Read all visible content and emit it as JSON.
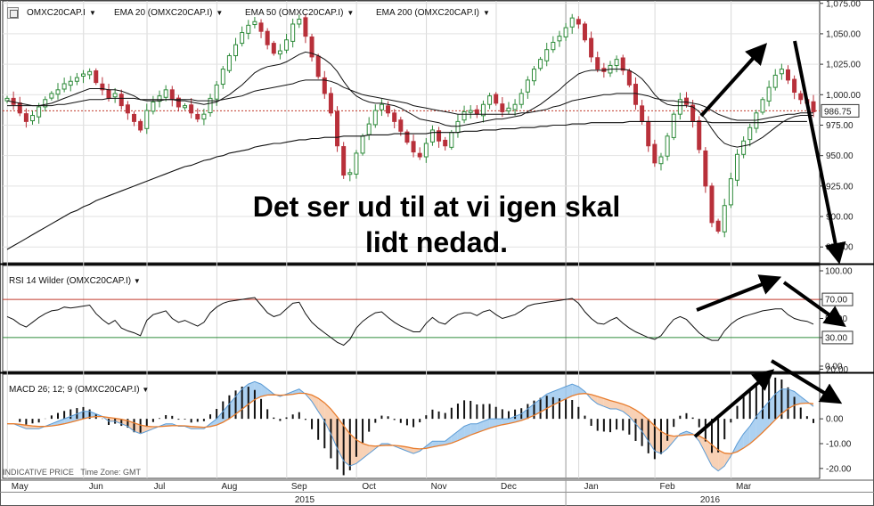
{
  "header": {
    "symbol": "OMXC20CAP.I",
    "ema20": "EMA 20 (OMXC20CAP.I)",
    "ema50": "EMA 50 (OMXC20CAP.I)",
    "ema200": "EMA 200 (OMXC20CAP.I)"
  },
  "rsi_title": "RSI 14 Wilder (OMXC20CAP.I)",
  "macd_title": "MACD 26; 12; 9 (OMXC20CAP.I)",
  "annotation": {
    "line1": "Det ser ud til at vi igen skal",
    "line2": "lidt nedad."
  },
  "footer": {
    "price_type": "INDICATIVE PRICE",
    "timezone": "Time Zone: GMT"
  },
  "colors": {
    "up": "#2e8b3a",
    "down": "#b8303a",
    "rsi_high": "#c0392b",
    "rsi_low": "#2e8b3a",
    "macd_fill_blue": "#9fc9ee",
    "macd_fill_orange": "#f7c9a8",
    "signal": "#e87d2e",
    "macd": "#5b9bd5"
  },
  "chart_data": {
    "type": "line",
    "price": {
      "y_ticks": [
        1075,
        1050,
        1025,
        1000,
        975,
        950,
        925,
        900,
        875
      ],
      "y_tick_labels": [
        "1,075.00",
        "1,050.00",
        "1,025.00",
        "1,000.00",
        "975.00",
        "950.00",
        "925.00",
        "900.00",
        "875.00"
      ],
      "ylim": [
        862,
        1077
      ],
      "last_value": 986.75,
      "last_label": "986.75",
      "close": [
        997,
        992,
        985,
        978,
        983,
        990,
        996,
        1001,
        1004,
        1009,
        1011,
        1014,
        1017,
        1019,
        1010,
        1004,
        997,
        1001,
        991,
        985,
        978,
        971,
        987,
        994,
        999,
        1004,
        996,
        990,
        991,
        985,
        980,
        984,
        997,
        1008,
        1021,
        1032,
        1041,
        1051,
        1057,
        1060,
        1052,
        1041,
        1034,
        1036,
        1045,
        1058,
        1062,
        1048,
        1031,
        1015,
        1001,
        985,
        958,
        934,
        936,
        952,
        966,
        976,
        987,
        992,
        985,
        978,
        970,
        961,
        953,
        949,
        960,
        971,
        962,
        958,
        969,
        978,
        986,
        987,
        984,
        992,
        999,
        993,
        986,
        989,
        992,
        1001,
        1012,
        1021,
        1029,
        1037,
        1043,
        1048,
        1055,
        1063,
        1058,
        1045,
        1031,
        1021,
        1019,
        1024,
        1029,
        1020,
        1008,
        992,
        978,
        958,
        944,
        949,
        966,
        984,
        996,
        992,
        978,
        955,
        925,
        895,
        888,
        909,
        931,
        951,
        962,
        973,
        985,
        996,
        1006,
        1016,
        1021,
        1012,
        1002,
        996,
        993,
        986
      ]
    },
    "ema20": [
      995,
      994,
      993,
      992,
      991,
      991,
      992,
      993,
      995,
      997,
      999,
      1001,
      1003,
      1005,
      1005,
      1005,
      1004,
      1004,
      1003,
      1001,
      999,
      996,
      995,
      995,
      995,
      996,
      996,
      995,
      995,
      994,
      993,
      992,
      993,
      994,
      997,
      1000,
      1004,
      1008,
      1013,
      1018,
      1021,
      1023,
      1024,
      1025,
      1027,
      1030,
      1033,
      1035,
      1034,
      1032,
      1029,
      1025,
      1019,
      1011,
      1004,
      999,
      996,
      994,
      993,
      993,
      992,
      991,
      989,
      986,
      983,
      980,
      979,
      978,
      977,
      975,
      974,
      974,
      975,
      976,
      977,
      978,
      979,
      980,
      980,
      981,
      982,
      983,
      986,
      989,
      992,
      996,
      1000,
      1004,
      1009,
      1013,
      1017,
      1019,
      1020,
      1020,
      1020,
      1021,
      1021,
      1021,
      1020,
      1017,
      1013,
      1007,
      1000,
      995,
      992,
      991,
      991,
      991,
      990,
      986,
      980,
      972,
      965,
      960,
      958,
      957,
      958,
      959,
      962,
      965,
      969,
      973,
      977,
      980,
      982,
      983,
      983,
      983
    ],
    "ema50": [
      991,
      991,
      991,
      991,
      991,
      991,
      991,
      991,
      992,
      992,
      993,
      994,
      995,
      996,
      996,
      996,
      997,
      997,
      997,
      997,
      997,
      996,
      996,
      996,
      996,
      996,
      996,
      996,
      996,
      996,
      995,
      995,
      995,
      995,
      996,
      997,
      998,
      999,
      1001,
      1003,
      1004,
      1005,
      1006,
      1007,
      1008,
      1009,
      1011,
      1012,
      1012,
      1012,
      1012,
      1011,
      1009,
      1006,
      1004,
      1002,
      1000,
      999,
      998,
      997,
      996,
      995,
      994,
      993,
      991,
      990,
      989,
      988,
      987,
      986,
      985,
      984,
      984,
      984,
      984,
      984,
      984,
      984,
      984,
      984,
      984,
      985,
      985,
      986,
      987,
      988,
      990,
      991,
      993,
      995,
      996,
      997,
      998,
      999,
      1000,
      1000,
      1001,
      1001,
      1001,
      1001,
      1000,
      999,
      997,
      996,
      995,
      995,
      994,
      994,
      993,
      992,
      990,
      987,
      984,
      982,
      980,
      979,
      979,
      979,
      979,
      980,
      981,
      982,
      983,
      984,
      984,
      985,
      985,
      985
    ],
    "ema200": [
      873,
      876,
      879,
      882,
      885,
      888,
      891,
      894,
      897,
      900,
      903,
      905,
      908,
      910,
      913,
      915,
      917,
      919,
      921,
      923,
      925,
      927,
      929,
      931,
      933,
      935,
      937,
      939,
      941,
      942,
      944,
      946,
      947,
      949,
      950,
      952,
      953,
      954,
      955,
      957,
      958,
      959,
      960,
      960,
      961,
      962,
      963,
      963,
      964,
      964,
      965,
      965,
      965,
      966,
      966,
      966,
      966,
      967,
      967,
      967,
      967,
      968,
      968,
      968,
      968,
      968,
      968,
      969,
      969,
      969,
      969,
      969,
      970,
      970,
      970,
      971,
      971,
      971,
      972,
      972,
      972,
      973,
      973,
      973,
      974,
      974,
      975,
      975,
      975,
      976,
      976,
      976,
      977,
      977,
      977,
      977,
      977,
      977,
      978,
      978,
      978,
      978,
      978,
      978,
      978,
      978,
      978,
      978,
      978,
      978,
      978,
      977,
      977,
      977,
      977,
      977,
      977,
      977,
      977,
      977,
      978,
      978,
      978,
      978,
      978,
      978,
      978
    ],
    "rsi": {
      "y_ticks": [
        100,
        70,
        50,
        30,
        0
      ],
      "y_tick_labels": [
        "100.00",
        "70.00",
        "50.00",
        "30.00",
        "0.00"
      ],
      "ylim": [
        0,
        100
      ],
      "overbought": 70,
      "oversold": 30,
      "values": [
        52,
        49,
        44,
        41,
        46,
        51,
        55,
        58,
        59,
        62,
        61,
        62,
        63,
        64,
        55,
        49,
        44,
        48,
        40,
        37,
        35,
        32,
        48,
        54,
        56,
        58,
        50,
        46,
        48,
        45,
        42,
        46,
        56,
        62,
        66,
        68,
        69,
        70,
        71,
        72,
        64,
        56,
        52,
        54,
        60,
        66,
        67,
        55,
        46,
        40,
        35,
        30,
        25,
        22,
        28,
        40,
        47,
        52,
        56,
        57,
        51,
        46,
        42,
        39,
        36,
        36,
        45,
        51,
        46,
        44,
        50,
        54,
        56,
        56,
        53,
        57,
        59,
        54,
        50,
        52,
        54,
        58,
        63,
        65,
        66,
        67,
        68,
        69,
        70,
        71,
        66,
        57,
        50,
        45,
        44,
        48,
        51,
        45,
        40,
        36,
        33,
        30,
        28,
        32,
        41,
        49,
        52,
        49,
        42,
        35,
        30,
        27,
        27,
        37,
        44,
        49,
        52,
        54,
        56,
        58,
        59,
        60,
        60,
        54,
        50,
        48,
        47,
        44
      ]
    },
    "macd": {
      "y_ticks": [
        20,
        0,
        -10,
        -20
      ],
      "y_tick_labels": [
        "20.00",
        "0.00",
        "-10.00",
        "-20.00"
      ],
      "ylim": [
        -24,
        18
      ],
      "macd": [
        -2,
        -2,
        -3,
        -4,
        -4,
        -4,
        -3,
        -2,
        -1,
        0,
        1,
        2,
        3,
        3,
        2,
        1,
        -1,
        -1,
        -2,
        -3,
        -5,
        -6,
        -5,
        -4,
        -3,
        -2,
        -2,
        -3,
        -3,
        -4,
        -4,
        -4,
        -2,
        0,
        3,
        6,
        9,
        12,
        14,
        15,
        14,
        12,
        10,
        9,
        10,
        11,
        12,
        10,
        7,
        3,
        -1,
        -6,
        -12,
        -17,
        -19,
        -18,
        -16,
        -14,
        -12,
        -10,
        -10,
        -11,
        -12,
        -13,
        -14,
        -13,
        -11,
        -9,
        -9,
        -9,
        -7,
        -5,
        -3,
        -2,
        -2,
        -1,
        0,
        0,
        0,
        0,
        1,
        2,
        4,
        6,
        8,
        10,
        11,
        12,
        13,
        14,
        13,
        11,
        8,
        6,
        5,
        4,
        4,
        3,
        1,
        -2,
        -5,
        -9,
        -13,
        -14,
        -12,
        -9,
        -6,
        -5,
        -6,
        -9,
        -14,
        -19,
        -21,
        -19,
        -15,
        -10,
        -6,
        -3,
        1,
        4,
        7,
        10,
        12,
        12,
        11,
        9,
        7,
        5
      ]
    },
    "x_axis": {
      "months": [
        "May",
        "Jun",
        "Jul",
        "Aug",
        "Sep",
        "Oct",
        "Nov",
        "Dec",
        "Jan",
        "Feb",
        "Mar"
      ],
      "years": [
        "2015",
        "2016"
      ]
    },
    "arrows": "four black trend arrows drawn on chart"
  }
}
